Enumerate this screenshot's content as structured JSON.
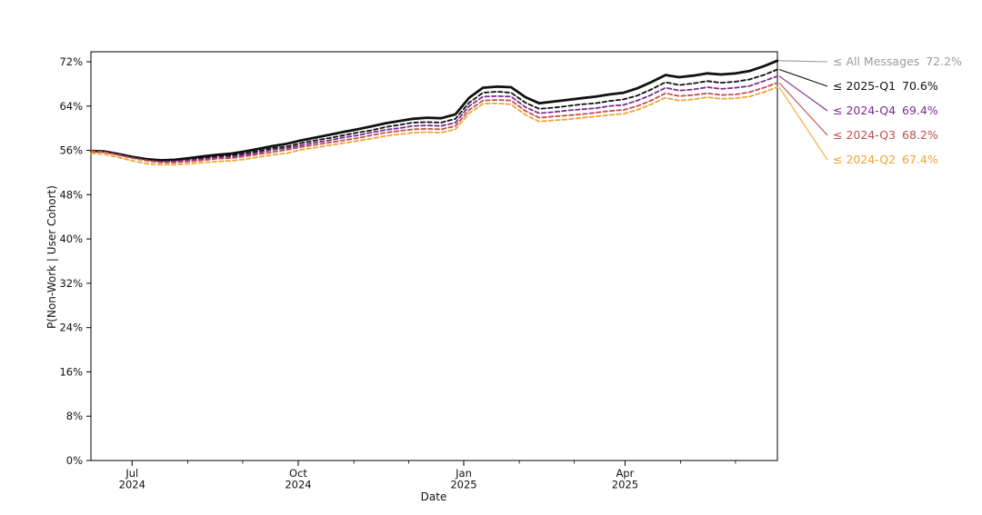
{
  "chart_data": {
    "type": "line",
    "title": "",
    "xlabel": "Date",
    "ylabel": "P(Non-Work | User Cohort)",
    "ylim": [
      0,
      73.8
    ],
    "yticks": [
      0,
      8,
      16,
      24,
      32,
      40,
      48,
      56,
      64,
      72
    ],
    "ytick_suffix": "%",
    "xticks": [
      {
        "pos": 0.06,
        "line1": "Jul",
        "line2": "2024"
      },
      {
        "pos": 0.302,
        "line1": "Oct",
        "line2": "2024"
      },
      {
        "pos": 0.543,
        "line1": "Jan",
        "line2": "2025"
      },
      {
        "pos": 0.778,
        "line1": "Apr",
        "line2": "2025"
      }
    ],
    "xticks_minor": [
      0.141,
      0.221,
      0.383,
      0.463,
      0.624,
      0.704,
      0.859,
      0.939
    ],
    "grid": false,
    "legend_position": "right-outside",
    "x": [
      0.0,
      0.02,
      0.041,
      0.061,
      0.082,
      0.102,
      0.122,
      0.143,
      0.163,
      0.184,
      0.204,
      0.224,
      0.245,
      0.265,
      0.286,
      0.306,
      0.327,
      0.347,
      0.367,
      0.388,
      0.408,
      0.429,
      0.449,
      0.469,
      0.49,
      0.51,
      0.531,
      0.551,
      0.571,
      0.592,
      0.612,
      0.633,
      0.653,
      0.673,
      0.694,
      0.714,
      0.735,
      0.755,
      0.776,
      0.796,
      0.816,
      0.837,
      0.857,
      0.878,
      0.898,
      0.918,
      0.939,
      0.959,
      0.98,
      1.0
    ],
    "series": [
      {
        "id": "all-messages",
        "name": "≤ All Messages",
        "end_label": "72.2%",
        "end_value": 72.2,
        "color": "#9b9b9b",
        "line_color": "#111111",
        "style": "solid",
        "width": 2.8,
        "values": [
          55.9,
          55.8,
          55.3,
          54.8,
          54.4,
          54.2,
          54.3,
          54.6,
          54.9,
          55.2,
          55.4,
          55.8,
          56.3,
          56.8,
          57.2,
          57.8,
          58.3,
          58.8,
          59.3,
          59.8,
          60.3,
          60.9,
          61.3,
          61.7,
          61.9,
          61.8,
          62.5,
          65.5,
          67.3,
          67.5,
          67.4,
          65.6,
          64.5,
          64.8,
          65.1,
          65.4,
          65.7,
          66.1,
          66.4,
          67.2,
          68.3,
          69.6,
          69.2,
          69.5,
          69.9,
          69.7,
          69.9,
          70.3,
          71.2,
          72.2
        ]
      },
      {
        "id": "2025-q1",
        "name": "≤ 2025-Q1",
        "end_label": "70.6%",
        "end_value": 70.6,
        "color": "#111111",
        "line_color": "#111111",
        "style": "dashed",
        "width": 1.8,
        "values": [
          55.9,
          55.8,
          55.2,
          54.7,
          54.3,
          54.0,
          54.1,
          54.4,
          54.6,
          54.9,
          55.1,
          55.4,
          55.9,
          56.4,
          56.7,
          57.3,
          57.8,
          58.2,
          58.7,
          59.2,
          59.6,
          60.2,
          60.6,
          61.0,
          61.1,
          61.0,
          61.7,
          64.6,
          66.4,
          66.6,
          66.4,
          64.6,
          63.5,
          63.7,
          64.0,
          64.3,
          64.5,
          64.9,
          65.2,
          65.9,
          67.0,
          68.3,
          67.8,
          68.1,
          68.5,
          68.2,
          68.4,
          68.8,
          69.6,
          70.6
        ]
      },
      {
        "id": "2024-q4",
        "name": "≤ 2024-Q4",
        "end_label": "69.4%",
        "end_value": 69.4,
        "color": "#7a2d8f",
        "line_color": "#7a2d8f",
        "style": "dashed",
        "width": 1.8,
        "values": [
          55.9,
          55.7,
          55.2,
          54.6,
          54.2,
          53.9,
          54.0,
          54.2,
          54.4,
          54.7,
          54.8,
          55.2,
          55.6,
          56.1,
          56.4,
          56.9,
          57.4,
          57.8,
          58.3,
          58.7,
          59.2,
          59.7,
          60.0,
          60.4,
          60.5,
          60.4,
          61.0,
          64.0,
          65.7,
          65.8,
          65.7,
          63.8,
          62.7,
          62.9,
          63.2,
          63.4,
          63.6,
          64.0,
          64.2,
          65.0,
          66.0,
          67.3,
          66.8,
          67.0,
          67.4,
          67.1,
          67.3,
          67.6,
          68.5,
          69.4
        ]
      },
      {
        "id": "2024-q3",
        "name": "≤ 2024-Q3",
        "end_label": "68.2%",
        "end_value": 68.2,
        "color": "#c14f4f",
        "line_color": "#c14f4f",
        "style": "dashed",
        "width": 1.8,
        "values": [
          55.9,
          55.7,
          55.1,
          54.6,
          54.1,
          53.8,
          53.8,
          54.0,
          54.2,
          54.5,
          54.6,
          54.9,
          55.3,
          55.7,
          56.1,
          56.6,
          57.0,
          57.4,
          57.8,
          58.2,
          58.7,
          59.2,
          59.5,
          59.8,
          59.9,
          59.8,
          60.4,
          63.3,
          65.0,
          65.1,
          65.0,
          63.1,
          61.9,
          62.1,
          62.3,
          62.5,
          62.8,
          63.1,
          63.3,
          64.0,
          65.0,
          66.3,
          65.8,
          66.0,
          66.3,
          66.0,
          66.1,
          66.5,
          67.3,
          68.2
        ]
      },
      {
        "id": "2024-q2",
        "name": "≤ 2024-Q2",
        "end_label": "67.4%",
        "end_value": 67.4,
        "color": "#f0a330",
        "line_color": "#f0a330",
        "style": "dashed",
        "width": 1.8,
        "values": [
          55.5,
          55.3,
          54.7,
          54.1,
          53.6,
          53.4,
          53.4,
          53.6,
          53.8,
          54.0,
          54.1,
          54.4,
          54.8,
          55.2,
          55.5,
          56.1,
          56.5,
          56.9,
          57.3,
          57.7,
          58.1,
          58.6,
          58.9,
          59.2,
          59.3,
          59.2,
          59.8,
          62.7,
          64.4,
          64.5,
          64.3,
          62.4,
          61.2,
          61.4,
          61.6,
          61.9,
          62.1,
          62.4,
          62.6,
          63.3,
          64.3,
          65.5,
          65.0,
          65.2,
          65.6,
          65.3,
          65.4,
          65.7,
          66.5,
          67.4
        ]
      }
    ]
  }
}
